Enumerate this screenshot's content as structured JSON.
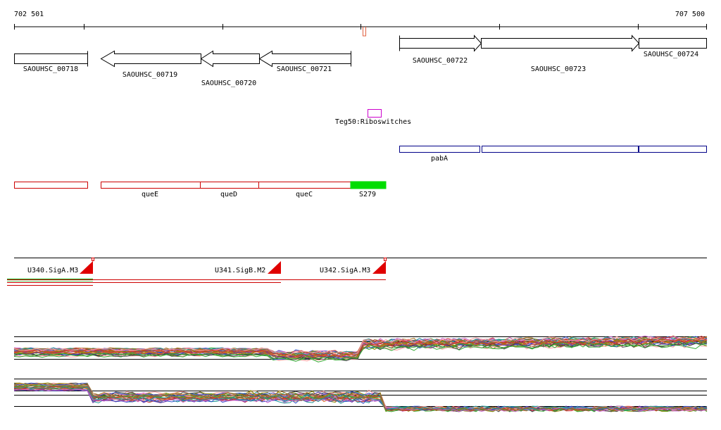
{
  "coords": {
    "start": "702 501",
    "end": "707 500"
  },
  "genes": [
    {
      "id": "g718",
      "label": "SAOUHSC_00718"
    },
    {
      "id": "g719",
      "label": "SAOUHSC_00719"
    },
    {
      "id": "g720",
      "label": "SAOUHSC_00720"
    },
    {
      "id": "g721",
      "label": "SAOUHSC_00721"
    },
    {
      "id": "g722",
      "label": "SAOUHSC_00722"
    },
    {
      "id": "g723",
      "label": "SAOUHSC_00723"
    },
    {
      "id": "g724",
      "label": "SAOUHSC_00724"
    }
  ],
  "riboswitch": {
    "label": "Teg50:Riboswitches",
    "color": "#cc00cc"
  },
  "pab": {
    "label": "pabA",
    "color": "#000088"
  },
  "que": {
    "color": "#cc0000",
    "labels": [
      "queE",
      "queD",
      "queC"
    ],
    "srna": {
      "label": "S279",
      "color": "#00dd00"
    }
  },
  "promoters": [
    {
      "id": "u340",
      "label": "U340.SigA.M3"
    },
    {
      "id": "u341",
      "label": "U341.SigB.M2"
    },
    {
      "id": "u342",
      "label": "U342.SigA.M3"
    }
  ]
}
